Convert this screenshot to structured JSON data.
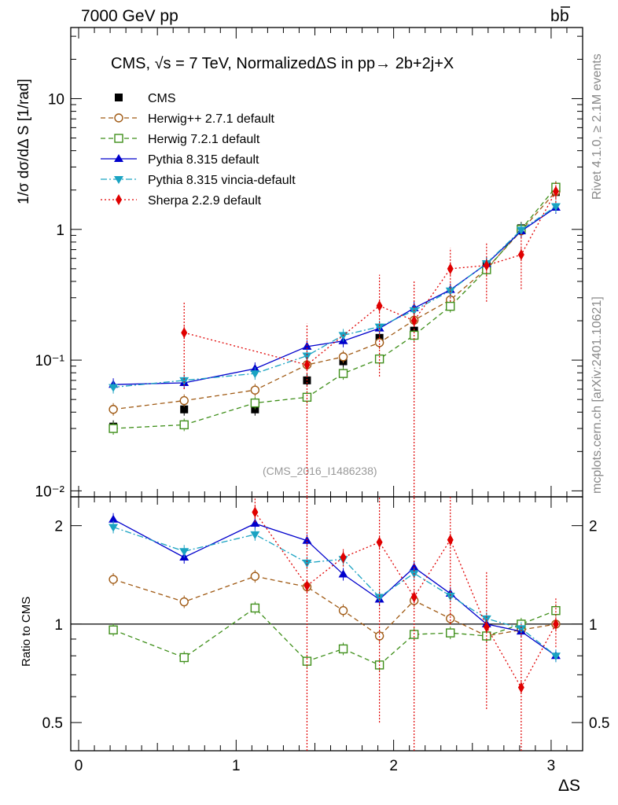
{
  "header": {
    "left": "7000 GeV pp",
    "right": "b",
    "right_bar": "b"
  },
  "side_labels": {
    "rivet": "Rivet 4.1.0, ≥ 2.1M events",
    "mcplots": "mcplots.cern.ch [arXiv:2401.10621]"
  },
  "chart_data": [
    {
      "type": "line",
      "title": "CMS, √s = 7 TeV, NormalizedΔS in pp→  2b+2j+X",
      "title_parts": {
        "pre": "CMS, ",
        "root": "√",
        "s": "s",
        "post": " = 7 TeV, NormalizedΔS in pp→  2b+2j+X"
      },
      "ylabel": "1/σ dσ/dΔ S [1/rad]",
      "yscale": "log",
      "ylim": [
        0.009,
        35
      ],
      "xlim": [
        -0.05,
        3.2
      ],
      "ytick_labels": [
        {
          "value": 10,
          "label": "10"
        },
        {
          "value": 1,
          "label": "1"
        },
        {
          "value": 0.1,
          "label": "10⁻¹"
        },
        {
          "value": 0.01,
          "label": "10⁻²"
        }
      ],
      "watermark": "(CMS_2016_I1486238)",
      "x": [
        0.22,
        0.67,
        1.12,
        1.45,
        1.68,
        1.91,
        2.13,
        2.36,
        2.59,
        2.81,
        3.03
      ],
      "series": [
        {
          "name": "CMS",
          "color": "#000000",
          "style": "data",
          "marker": "square-filled",
          "values": [
            0.031,
            0.042,
            0.042,
            0.07,
            0.098,
            0.148,
            0.168,
            0.28,
            0.54,
            1.02,
            1.93
          ]
        },
        {
          "name": "Herwig++ 2.7.1 default",
          "color": "#a05a14",
          "style": "dashed",
          "marker": "circle-open",
          "values": [
            0.042,
            0.049,
            0.059,
            0.092,
            0.106,
            0.136,
            0.202,
            0.289,
            0.5,
            0.975,
            1.95
          ]
        },
        {
          "name": "Herwig 7.2.1 default",
          "color": "#3f8f1a",
          "style": "dashed",
          "marker": "square-open",
          "values": [
            0.03,
            0.032,
            0.047,
            0.052,
            0.079,
            0.102,
            0.155,
            0.258,
            0.492,
            1.0,
            2.1
          ]
        },
        {
          "name": "Pythia 8.315 default",
          "color": "#0000cc",
          "style": "solid",
          "marker": "triangle-up",
          "values": [
            0.065,
            0.067,
            0.086,
            0.127,
            0.14,
            0.175,
            0.25,
            0.345,
            0.545,
            0.97,
            1.47
          ]
        },
        {
          "name": "Pythia 8.315 vincia-default",
          "color": "#1aa3c2",
          "style": "dashdot",
          "marker": "triangle-down",
          "values": [
            0.062,
            0.07,
            0.079,
            0.108,
            0.155,
            0.18,
            0.24,
            0.34,
            0.55,
            0.99,
            1.5
          ]
        },
        {
          "name": "Sherpa 2.2.9 default",
          "color": "#e00000",
          "style": "dotted",
          "marker": "diamond",
          "values": [
            null,
            0.162,
            null,
            0.092,
            null,
            0.26,
            0.2,
            0.5,
            0.53,
            0.64,
            1.95
          ],
          "errors": [
            null,
            [
              0.06,
              0.28
            ],
            null,
            [
              0.005,
              0.19
            ],
            null,
            [
              0.075,
              0.45
            ],
            [
              0.005,
              0.4
            ],
            [
              0.28,
              0.72
            ],
            [
              0.28,
              0.78
            ],
            [
              0.35,
              0.95
            ],
            [
              1.6,
              2.3
            ]
          ]
        }
      ]
    },
    {
      "type": "line",
      "ylabel": "Ratio to CMS",
      "xlabel": "ΔS",
      "yscale": "log",
      "ylim": [
        0.41,
        2.45
      ],
      "xlim": [
        -0.05,
        3.2
      ],
      "ytick_labels": [
        {
          "value": 2,
          "label": "2"
        },
        {
          "value": 1,
          "label": "1"
        },
        {
          "value": 0.5,
          "label": "0.5"
        }
      ],
      "xtick_labels": [
        {
          "value": 0,
          "label": "0"
        },
        {
          "value": 1,
          "label": "1"
        },
        {
          "value": 2,
          "label": "2"
        },
        {
          "value": 3,
          "label": "3"
        }
      ],
      "x": [
        0.22,
        0.67,
        1.12,
        1.45,
        1.68,
        1.91,
        2.13,
        2.36,
        2.59,
        2.81,
        3.03
      ],
      "series": [
        {
          "name": "Herwig++ 2.7.1 default",
          "color": "#a05a14",
          "style": "dashed",
          "marker": "circle-open",
          "values": [
            1.37,
            1.17,
            1.4,
            1.3,
            1.1,
            0.92,
            1.18,
            1.04,
            0.92,
            0.96,
            1.0
          ]
        },
        {
          "name": "Herwig 7.2.1 default",
          "color": "#3f8f1a",
          "style": "dashed",
          "marker": "square-open",
          "values": [
            0.96,
            0.79,
            1.12,
            0.77,
            0.84,
            0.75,
            0.93,
            0.94,
            0.92,
            1.0,
            1.1
          ]
        },
        {
          "name": "Pythia 8.315 default",
          "color": "#0000cc",
          "style": "solid",
          "marker": "triangle-up",
          "values": [
            2.09,
            1.6,
            2.03,
            1.8,
            1.42,
            1.19,
            1.49,
            1.24,
            1.0,
            0.95,
            0.8
          ]
        },
        {
          "name": "Pythia 8.315 vincia-default",
          "color": "#1aa3c2",
          "style": "dashdot",
          "marker": "triangle-down",
          "values": [
            1.98,
            1.67,
            1.88,
            1.54,
            1.58,
            1.21,
            1.43,
            1.22,
            1.04,
            0.97,
            0.8
          ]
        },
        {
          "name": "Sherpa 2.2.9 default",
          "color": "#e00000",
          "style": "dotted",
          "marker": "diamond",
          "values": [
            null,
            null,
            2.2,
            1.31,
            1.6,
            1.78,
            1.21,
            1.81,
            0.98,
            0.64,
            1.0
          ],
          "errors": [
            null,
            null,
            [
              2.05,
              2.45
            ],
            [
              0.3,
              2.45
            ],
            [
              1.5,
              1.7
            ],
            [
              0.5,
              2.45
            ],
            [
              0.3,
              2.45
            ],
            [
              1.0,
              2.45
            ],
            [
              0.55,
              1.45
            ],
            [
              0.3,
              1.0
            ],
            [
              0.85,
              1.2
            ]
          ]
        }
      ]
    }
  ]
}
